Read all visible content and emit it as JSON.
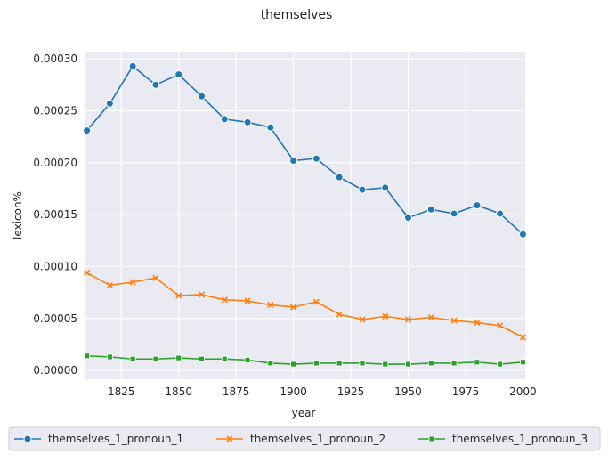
{
  "chart_data": {
    "type": "line",
    "title": "themselves",
    "xlabel": "year",
    "ylabel": "lexicon%",
    "xlim": [
      1809,
      2001
    ],
    "ylim": [
      -8.5e-06,
      0.000307
    ],
    "x_ticks": [
      1825,
      1850,
      1875,
      1900,
      1925,
      1950,
      1975,
      2000
    ],
    "y_ticks": [
      {
        "value": 0.0,
        "label": "0.00000"
      },
      {
        "value": 5e-05,
        "label": "0.00005"
      },
      {
        "value": 0.0001,
        "label": "0.00010"
      },
      {
        "value": 0.00015,
        "label": "0.00015"
      },
      {
        "value": 0.0002,
        "label": "0.00020"
      },
      {
        "value": 0.00025,
        "label": "0.00025"
      },
      {
        "value": 0.0003,
        "label": "0.00030"
      }
    ],
    "grid": true,
    "legend_position": "bottom-center",
    "x": [
      1810,
      1820,
      1830,
      1840,
      1850,
      1860,
      1870,
      1880,
      1890,
      1900,
      1910,
      1920,
      1930,
      1940,
      1950,
      1960,
      1970,
      1980,
      1990,
      2000
    ],
    "series": [
      {
        "name": "themselves_1_pronoun_1",
        "color": "#1f77b4",
        "marker": "circle",
        "values": [
          0.000231,
          0.000257,
          0.000293,
          0.000275,
          0.000285,
          0.000264,
          0.000242,
          0.000239,
          0.000234,
          0.000202,
          0.000204,
          0.000186,
          0.000174,
          0.000176,
          0.000147,
          0.000155,
          0.000151,
          0.000159,
          0.000151,
          0.000131
        ]
      },
      {
        "name": "themselves_1_pronoun_2",
        "color": "#ff7f0e",
        "marker": "x",
        "values": [
          9.4e-05,
          8.2e-05,
          8.5e-05,
          8.9e-05,
          7.2e-05,
          7.3e-05,
          6.8e-05,
          6.7e-05,
          6.3e-05,
          6.1e-05,
          6.6e-05,
          5.4e-05,
          4.9e-05,
          5.2e-05,
          4.9e-05,
          5.1e-05,
          4.8e-05,
          4.6e-05,
          4.3e-05,
          3.2e-05
        ]
      },
      {
        "name": "themselves_1_pronoun_3",
        "color": "#2ca02c",
        "marker": "square",
        "values": [
          1.4e-05,
          1.3e-05,
          1.1e-05,
          1.1e-05,
          1.2e-05,
          1.1e-05,
          1.1e-05,
          1e-05,
          7e-06,
          6e-06,
          7e-06,
          7e-06,
          7e-06,
          6e-06,
          6e-06,
          7e-06,
          7e-06,
          8e-06,
          6e-06,
          8e-06
        ]
      }
    ]
  }
}
